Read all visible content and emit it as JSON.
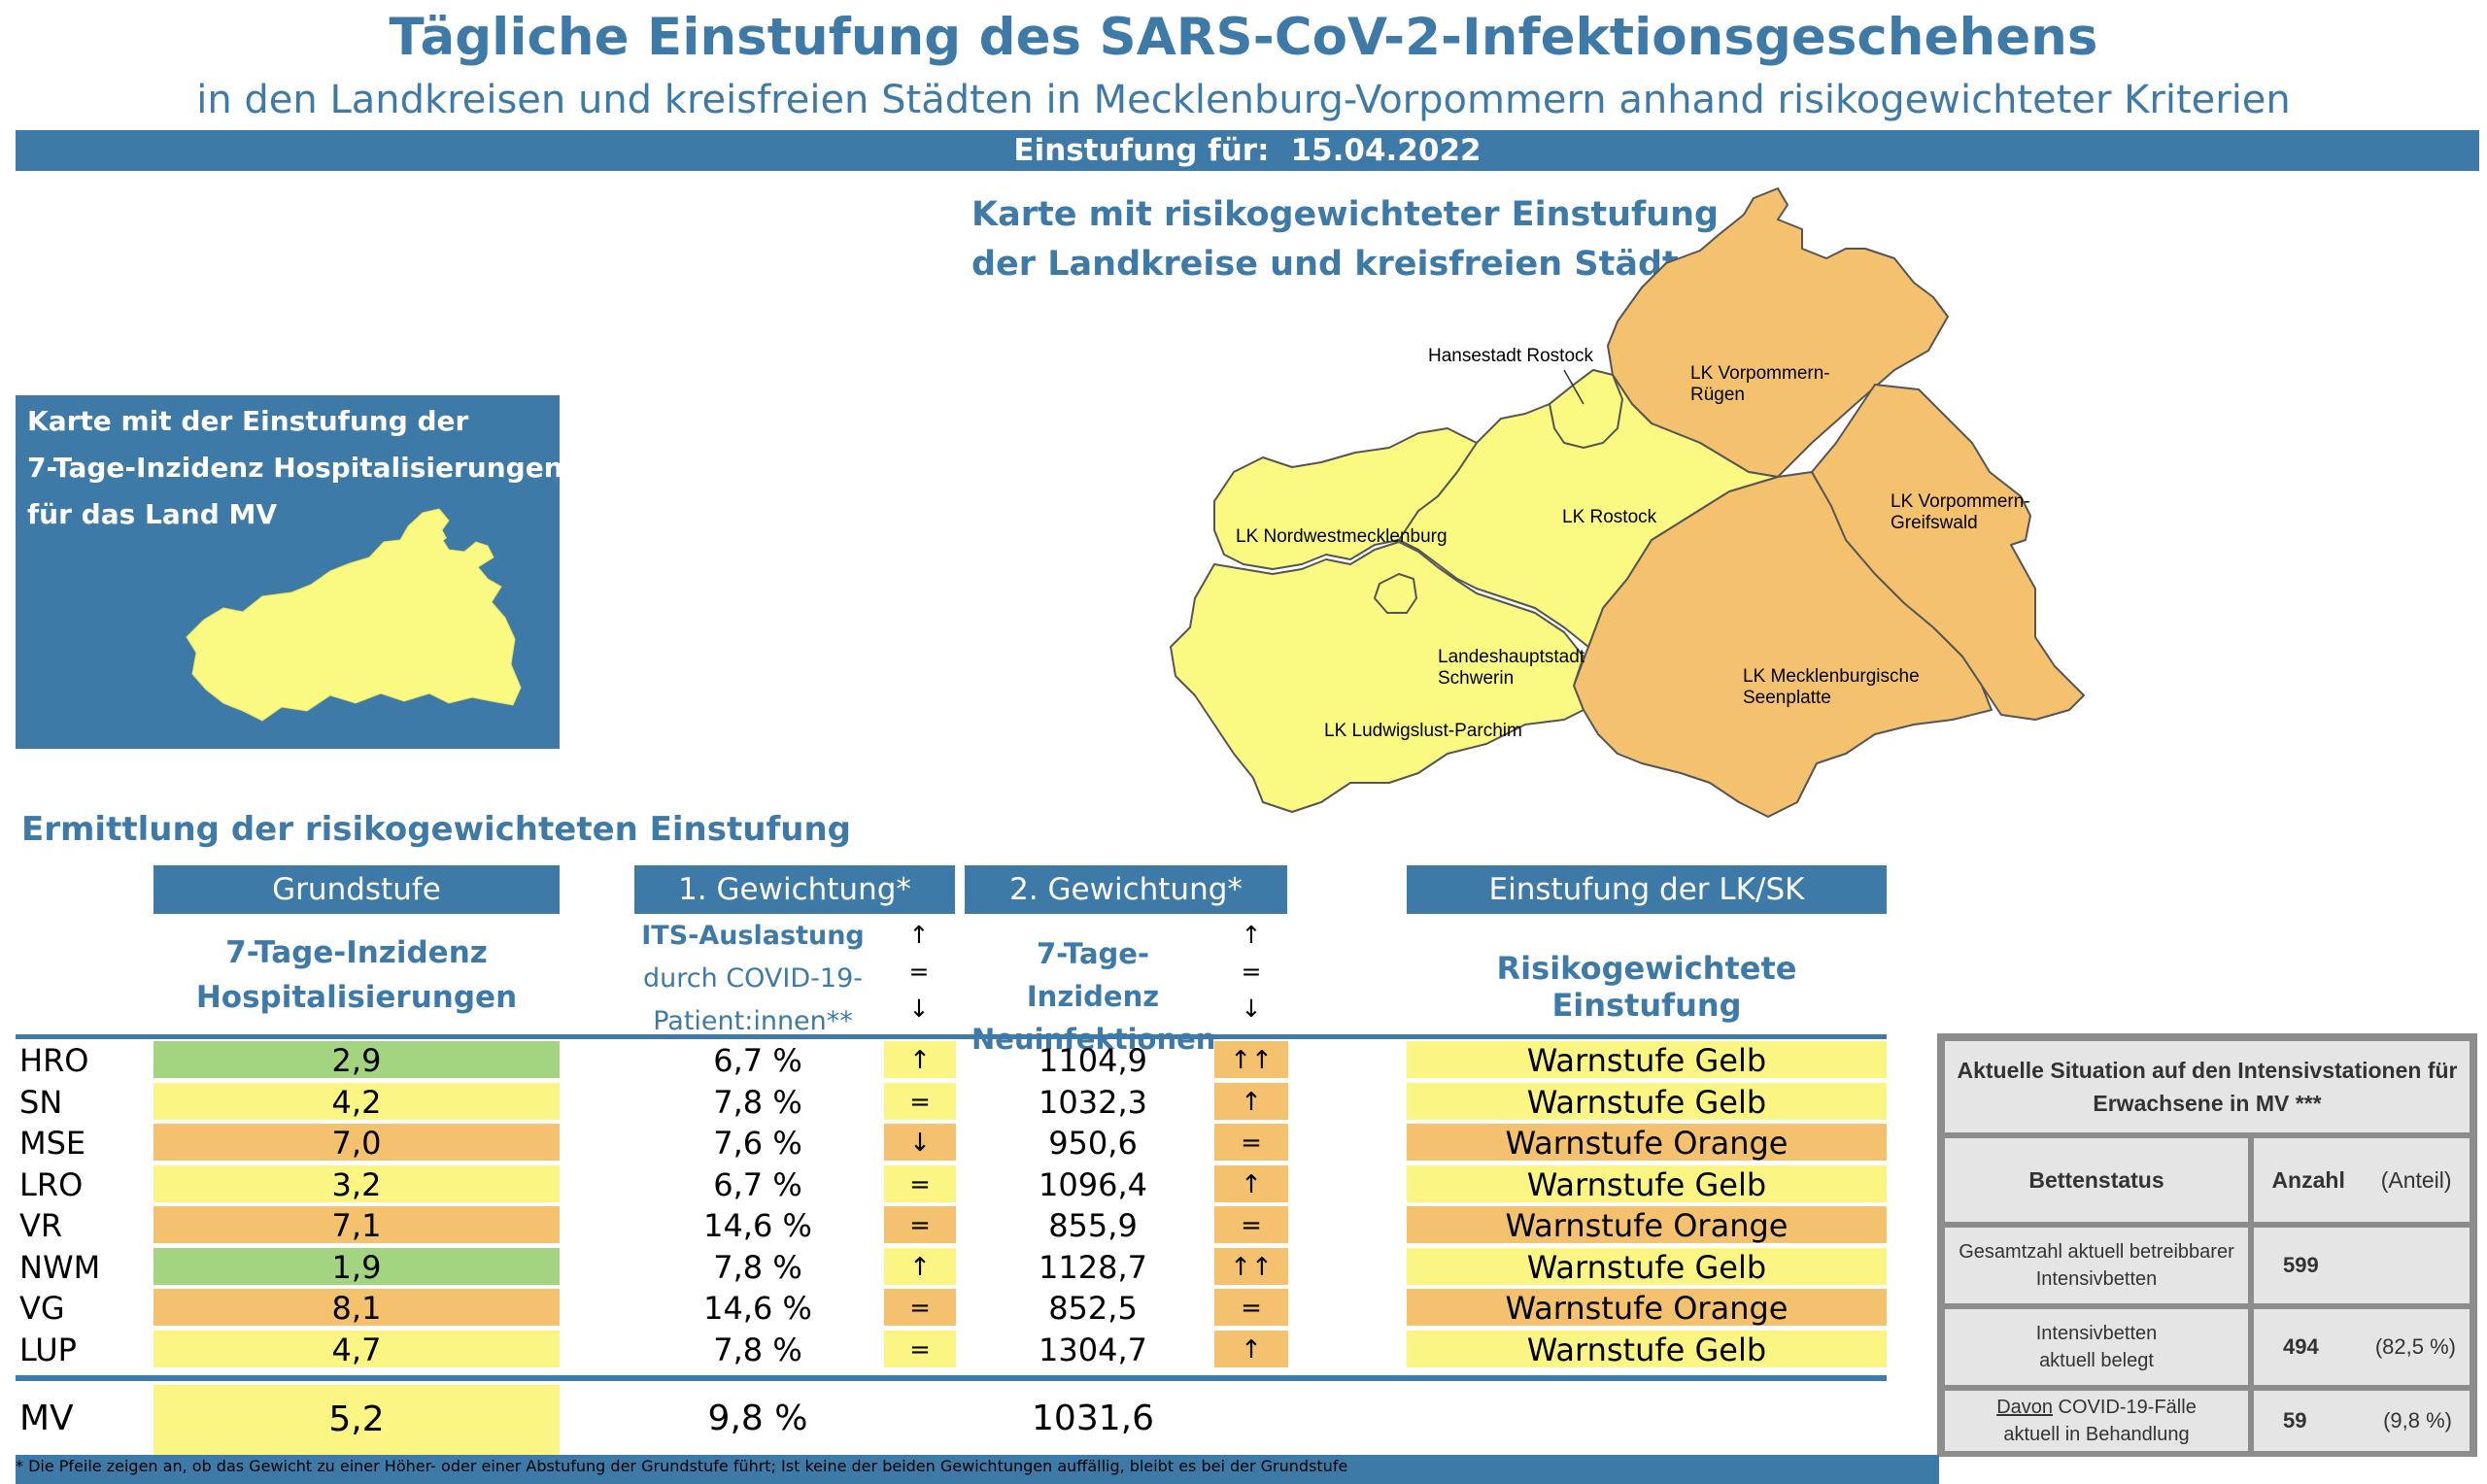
{
  "header": {
    "title": "Tägliche Einstufung des SARS-CoV-2-Infektionsgeschehens",
    "subtitle": "in den Landkreisen und kreisfreien Städten in Mecklenburg-Vorpommern anhand risikogewichteter Kriterien",
    "date_label": "Einstufung für:",
    "date_value": "15.04.2022"
  },
  "map": {
    "heading_line1": "Karte mit risikogewichteter Einstufung",
    "heading_line2": "der Landkreise und kreisfreien Städte",
    "labels": {
      "hro": "Hansestadt Rostock",
      "vr_1": "LK Vorpommern-",
      "vr_2": "Rügen",
      "nwm": "LK Nordwestmecklenburg",
      "lro": "LK Rostock",
      "vg_1": "LK Vorpommern-",
      "vg_2": "Greifswald",
      "sn_1": "Landeshauptstadt",
      "sn_2": "Schwerin",
      "mse_1": "LK Mecklenburgische",
      "mse_2": "Seenplatte",
      "lup": "LK Ludwigslust-Parchim"
    },
    "colors": {
      "gelb": "#fafa82",
      "orange": "#f4c16e",
      "border": "#555555"
    }
  },
  "mv_map": {
    "line1": "Karte mit der Einstufung der",
    "line2": "7-Tage-Inzidenz Hospitalisierungen",
    "line3": "für das Land MV"
  },
  "table": {
    "section_title": "Ermittlung der risikogewichteten Einstufung",
    "headers": {
      "grundstufe": "Grundstufe",
      "gewichtung1": "1. Gewichtung*",
      "gewichtung2": "2. Gewichtung*",
      "einstufung": "Einstufung der LK/SK"
    },
    "subheaders": {
      "hosp_1": "7-Tage-Inzidenz",
      "hosp_2": "Hospitalisierungen",
      "its_1": "ITS-Auslastung",
      "its_2": "durch COVID-19-",
      "its_3": "Patient:innen**",
      "inz_1": "7-Tage-Inzidenz",
      "inz_2": "Neuinfektionen",
      "einst": "Risikogewichtete Einstufung"
    },
    "arrow_legend": [
      "↑",
      "=",
      "↓"
    ],
    "rows": [
      {
        "code": "HRO",
        "hosp": "2,9",
        "its": "6,7 %",
        "its_trend": "↑",
        "inz": "1104,9",
        "inz_trend": "↑↑",
        "stufe": "Warnstufe Gelb"
      },
      {
        "code": "SN",
        "hosp": "4,2",
        "its": "7,8 %",
        "its_trend": "=",
        "inz": "1032,3",
        "inz_trend": "↑",
        "stufe": "Warnstufe Gelb"
      },
      {
        "code": "MSE",
        "hosp": "7,0",
        "its": "7,6 %",
        "its_trend": "↓",
        "inz": "950,6",
        "inz_trend": "=",
        "stufe": "Warnstufe Orange"
      },
      {
        "code": "LRO",
        "hosp": "3,2",
        "its": "6,7 %",
        "its_trend": "=",
        "inz": "1096,4",
        "inz_trend": "↑",
        "stufe": "Warnstufe Gelb"
      },
      {
        "code": "VR",
        "hosp": "7,1",
        "its": "14,6 %",
        "its_trend": "=",
        "inz": "855,9",
        "inz_trend": "=",
        "stufe": "Warnstufe Orange"
      },
      {
        "code": "NWM",
        "hosp": "1,9",
        "its": "7,8 %",
        "its_trend": "↑",
        "inz": "1128,7",
        "inz_trend": "↑↑",
        "stufe": "Warnstufe Gelb"
      },
      {
        "code": "VG",
        "hosp": "8,1",
        "its": "14,6 %",
        "its_trend": "=",
        "inz": "852,5",
        "inz_trend": "=",
        "stufe": "Warnstufe Orange"
      },
      {
        "code": "LUP",
        "hosp": "4,7",
        "its": "7,8 %",
        "its_trend": "=",
        "inz": "1304,7",
        "inz_trend": "↑",
        "stufe": "Warnstufe Gelb"
      }
    ],
    "total": {
      "code": "MV",
      "hosp": "5,2",
      "its": "9,8 %",
      "inz": "1031,6"
    },
    "colors": {
      "green": "#a3d47f",
      "yellow": "#fbf583",
      "orange": "#f4c16e"
    }
  },
  "its_box": {
    "title_1": "Aktuelle Situation auf den Intensivstationen für",
    "title_2": "Erwachsene in MV ***",
    "col_bettenstatus": "Bettenstatus",
    "col_anzahl": "Anzahl",
    "col_anteil": "(Anteil)",
    "rows": [
      {
        "label_1": "Gesamtzahl aktuell betreibbarer",
        "label_2": "Intensivbetten",
        "anzahl": "599",
        "anteil": ""
      },
      {
        "label_1": "Intensivbetten",
        "label_2": "aktuell belegt",
        "anzahl": "494",
        "anteil": "(82,5 %)"
      },
      {
        "label_1_u": "Davon",
        "label_1_rest": " COVID-19-Fälle",
        "label_2": "aktuell in Behandlung",
        "anzahl": "59",
        "anteil": "(9,8 %)"
      }
    ]
  },
  "footnote": "* Die Pfeile zeigen an, ob das Gewicht zu einer Höher- oder einer Abstufung der Grundstufe führt; Ist keine der beiden Gewichtungen auffällig, bleibt es bei der Grundstufe"
}
